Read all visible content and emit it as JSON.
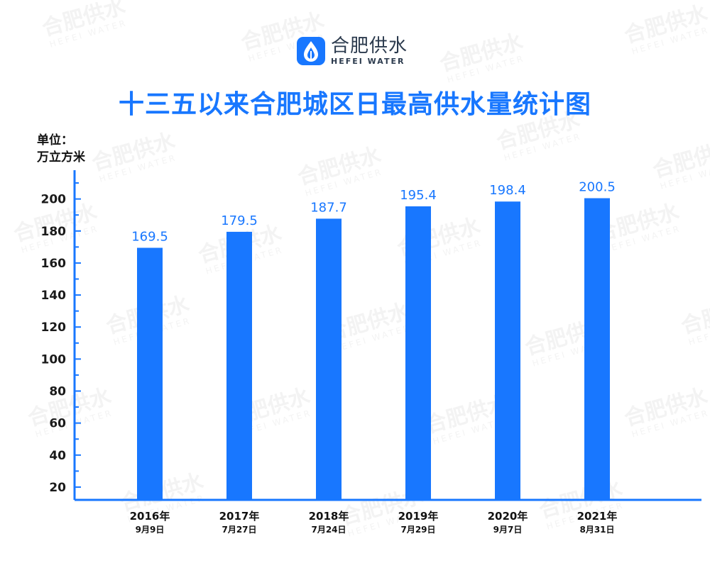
{
  "brand": {
    "name_cn": "合肥供水",
    "name_en": "HEFEI WATER",
    "accent_color": "#1877ff",
    "logo_icon": "water-drop-icon"
  },
  "unit_label": {
    "line1": "单位：",
    "line2": "万立方米"
  },
  "chart_data": {
    "type": "bar",
    "title": "十三五以来合肥城区日最高供水量统计图",
    "ylabel": "单位：万立方米",
    "categories": [
      "2016年",
      "2017年",
      "2018年",
      "2019年",
      "2020年",
      "2021年"
    ],
    "category_dates": [
      "9月9日",
      "7月27日",
      "7月24日",
      "7月29日",
      "9月7日",
      "8月31日"
    ],
    "values": [
      169.5,
      179.5,
      187.7,
      195.4,
      198.4,
      200.5
    ],
    "value_labels": [
      "169.5",
      "179.5",
      "187.7",
      "195.4",
      "198.4",
      "200.5"
    ],
    "yticks": [
      20,
      40,
      60,
      80,
      100,
      120,
      140,
      160,
      180,
      200
    ],
    "ylim": [
      12,
      218
    ],
    "grid": false,
    "bar_color": "#1877ff",
    "axis_color": "#1877ff"
  }
}
